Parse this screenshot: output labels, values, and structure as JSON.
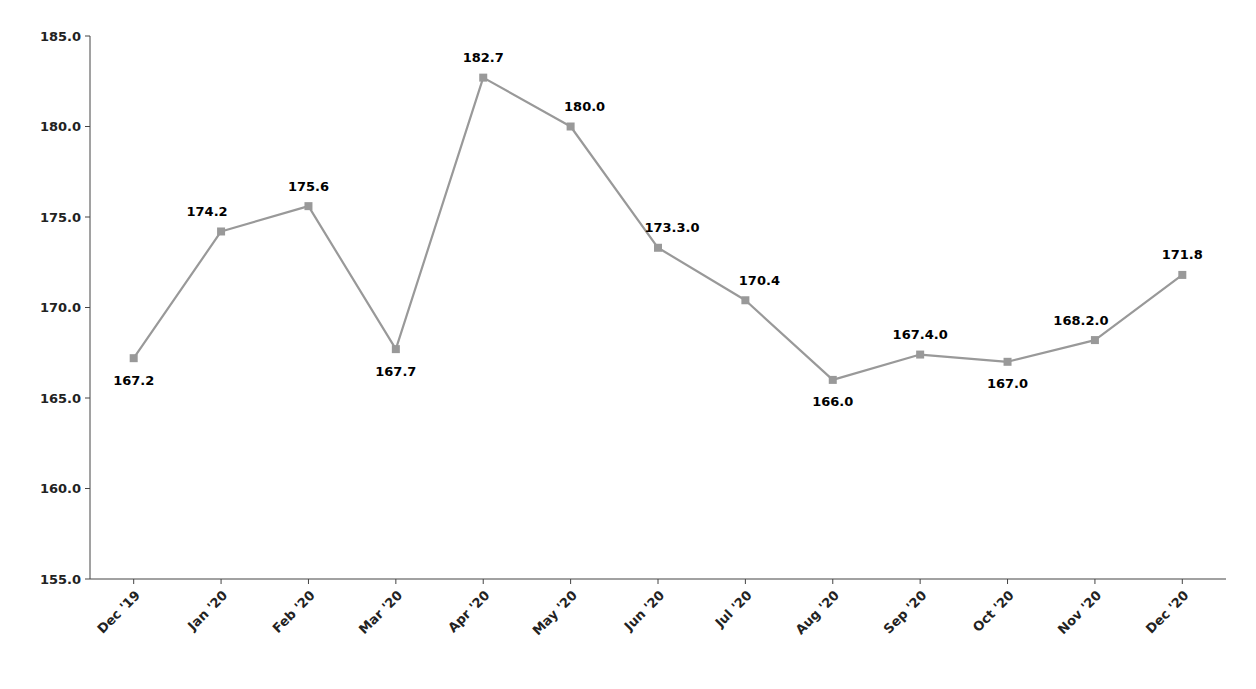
{
  "chart_data": {
    "type": "line",
    "categories": [
      "Dec '19",
      "Jan '20",
      "Feb '20",
      "Mar '20",
      "Apr '20",
      "May '20",
      "Jun '20",
      "Jul '20",
      "Aug '20",
      "Sep '20",
      "Oct '20",
      "Nov '20",
      "Dec '20"
    ],
    "values": [
      167.2,
      174.2,
      175.6,
      167.7,
      182.7,
      180.0,
      173.3,
      170.4,
      166.0,
      167.4,
      167.0,
      168.2,
      171.8
    ],
    "data_labels": true,
    "value_labels": [
      "167.2",
      "174.2",
      "175.6",
      "167.7",
      "182.7",
      "180.0",
      "173.3.0",
      "170.4",
      "166.0",
      "167.4.0",
      "167.0",
      "168.2.0",
      "171.8"
    ],
    "color": "#999999",
    "marker": "square",
    "ylim": [
      155.0,
      185.0
    ],
    "yticks": [
      {
        "value": 155.0,
        "label": "155.0"
      },
      {
        "value": 160.0,
        "label": "160.0"
      },
      {
        "value": 165.0,
        "label": "165.0"
      },
      {
        "value": 170.0,
        "label": "170.0"
      },
      {
        "value": 175.0,
        "label": "175.0"
      },
      {
        "value": 180.0,
        "label": "180.0"
      },
      {
        "value": 185.0,
        "label": "185.0"
      }
    ],
    "grid": false
  }
}
